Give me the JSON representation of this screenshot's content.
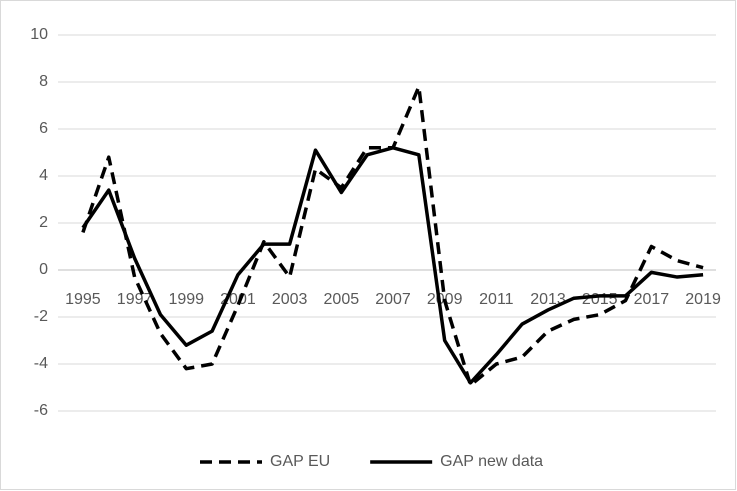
{
  "chart_data": {
    "type": "line",
    "categories": [
      "1995",
      null,
      "1997",
      null,
      "1999",
      null,
      "2001",
      null,
      "2003",
      null,
      "2005",
      null,
      "2007",
      null,
      "2009",
      null,
      "2011",
      null,
      "2013",
      null,
      "2015",
      null,
      "2017",
      null,
      "2019"
    ],
    "series": [
      {
        "name": "GAP EU",
        "color": "#000000",
        "dash": true,
        "values": [
          1.6,
          4.8,
          -0.3,
          -2.7,
          -4.2,
          -4.0,
          -1.5,
          1.2,
          -0.3,
          4.3,
          3.5,
          5.2,
          5.2,
          7.8,
          -1.3,
          -4.9,
          -4.0,
          -3.7,
          -2.6,
          -2.1,
          -1.9,
          -1.3,
          1.0,
          0.4,
          0.1
        ]
      },
      {
        "name": "GAP new data",
        "color": "#000000",
        "dash": false,
        "values": [
          1.8,
          3.4,
          0.5,
          -1.9,
          -3.2,
          -2.6,
          -0.2,
          1.1,
          1.1,
          5.1,
          3.3,
          4.9,
          5.2,
          4.9,
          -3.0,
          -4.8,
          -3.6,
          -2.3,
          -1.7,
          -1.2,
          -1.1,
          -1.1,
          -0.1,
          -0.3,
          -0.2
        ]
      }
    ],
    "ylim": [
      -6,
      10
    ],
    "yticks": [
      -6,
      -4,
      -2,
      0,
      2,
      4,
      6,
      8,
      10
    ],
    "grid": true,
    "legend": "bottom"
  }
}
